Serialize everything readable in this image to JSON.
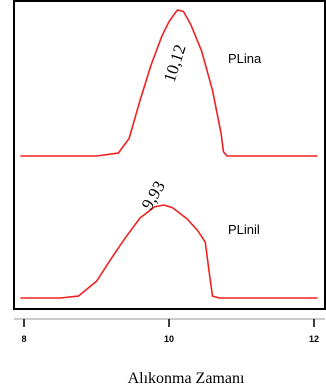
{
  "chart_data": {
    "type": "line",
    "xlabel": "Alıkonma Zamanı",
    "ylabel": "",
    "xlim": [
      7.95,
      12.05
    ],
    "x_ticks": [
      8,
      10,
      12
    ],
    "x_tick_labels": [
      "8",
      "10",
      "12"
    ],
    "grid": false,
    "legend": "none",
    "series": [
      {
        "name": "PLina",
        "peak_label": "10,12",
        "color": "#ee2222",
        "x": [
          7.95,
          9.0,
          9.3,
          9.45,
          9.6,
          9.75,
          9.9,
          10.0,
          10.1,
          10.12,
          10.2,
          10.3,
          10.45,
          10.6,
          10.72,
          10.75,
          10.8,
          11.2,
          12.05
        ],
        "y": [
          0.0,
          0.0,
          0.02,
          0.12,
          0.38,
          0.62,
          0.82,
          0.92,
          0.99,
          1.0,
          0.99,
          0.9,
          0.72,
          0.45,
          0.15,
          0.03,
          0.0,
          0.0,
          0.0
        ]
      },
      {
        "name": "PLinil",
        "peak_label": "9,93",
        "color": "#ee2222",
        "x": [
          7.95,
          8.5,
          8.75,
          9.0,
          9.2,
          9.4,
          9.6,
          9.8,
          9.93,
          10.05,
          10.25,
          10.4,
          10.5,
          10.55,
          10.6,
          10.7,
          12.05
        ],
        "y": [
          0.0,
          0.0,
          0.02,
          0.18,
          0.42,
          0.65,
          0.86,
          0.98,
          1.0,
          0.97,
          0.85,
          0.72,
          0.6,
          0.3,
          0.02,
          0.0,
          0.0
        ]
      }
    ]
  }
}
